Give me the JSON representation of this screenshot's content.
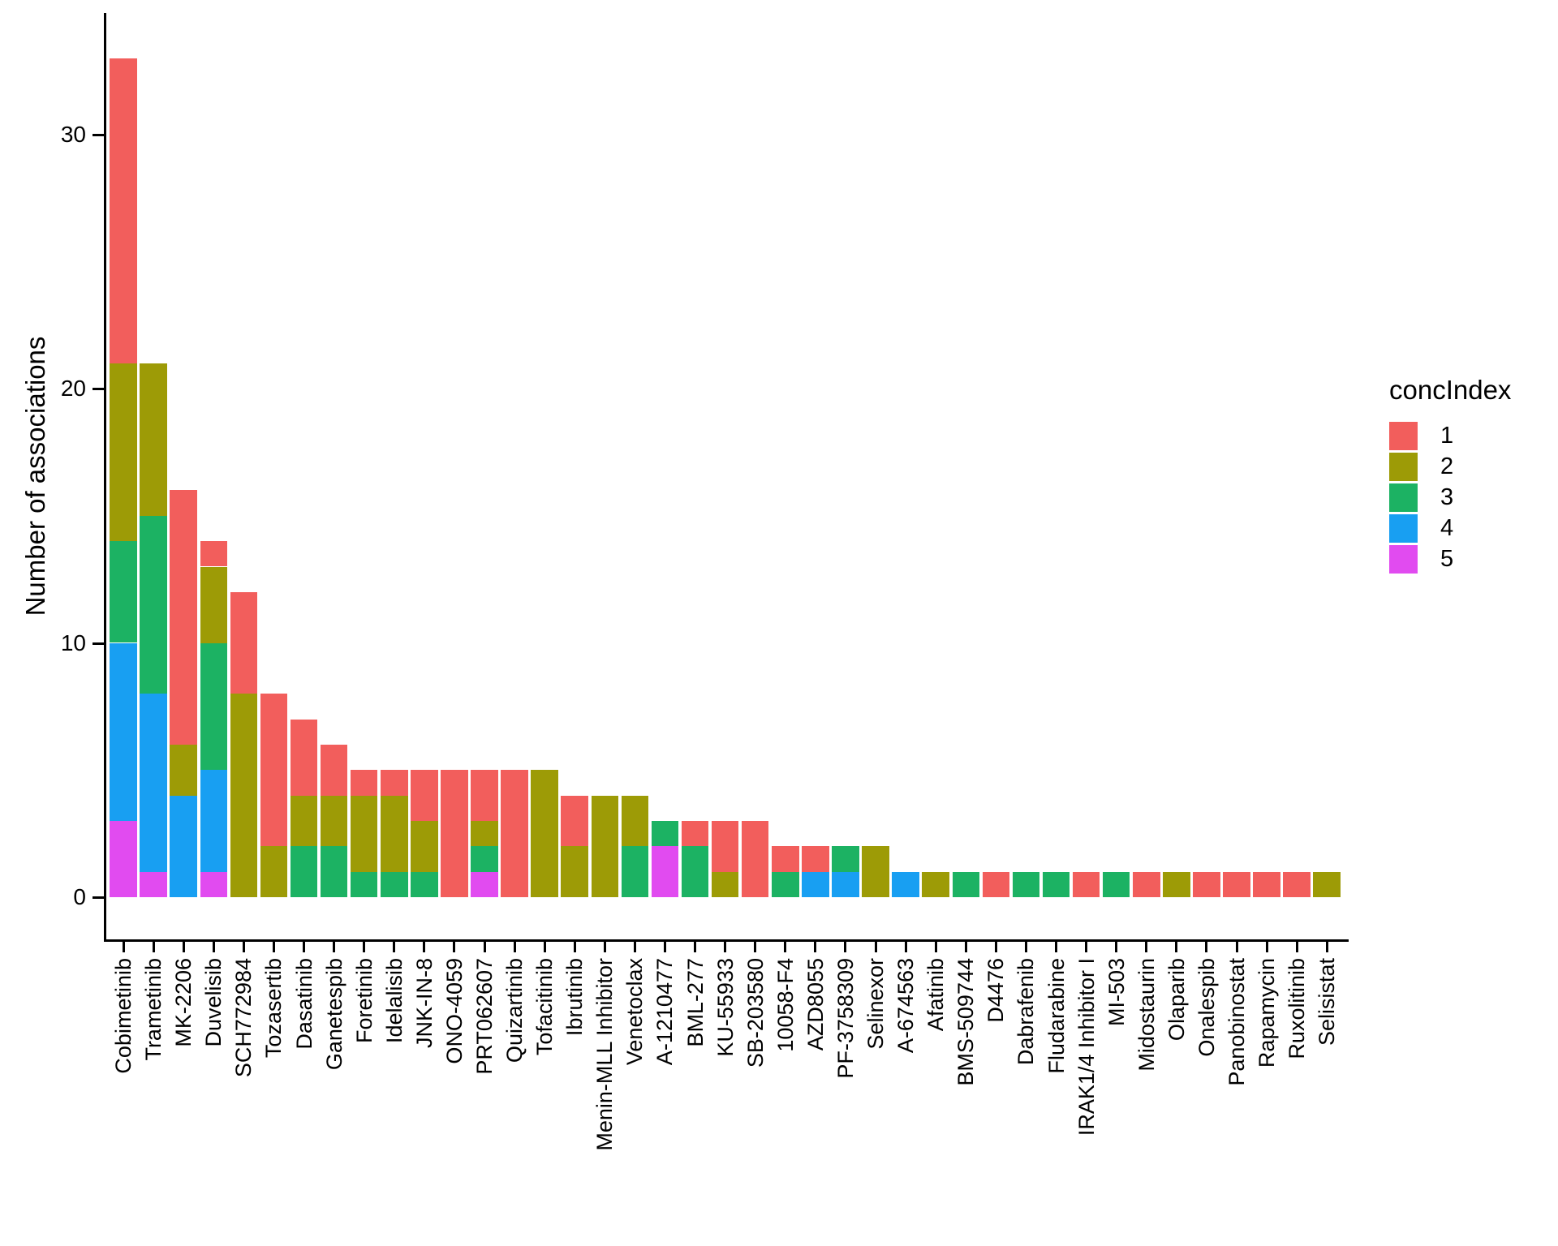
{
  "figure": {
    "background": "#FFFFFF",
    "axis_color": "#000000",
    "text_color": "#000000"
  },
  "chart_data": {
    "type": "bar",
    "stacked": true,
    "orientation": "vertical",
    "title": "",
    "xlabel": "",
    "ylabel": "Number of associations",
    "ylim": [
      0,
      35
    ],
    "yticks": [
      0,
      10,
      20,
      30
    ],
    "grid": false,
    "legend_title": "concIndex",
    "legend_position": "right",
    "stack_order_bottom_to_top": [
      "5",
      "4",
      "3",
      "2",
      "1"
    ],
    "categories": [
      "Cobimetinib",
      "Trametinib",
      "MK-2206",
      "Duvelisib",
      "SCH772984",
      "Tozasertib",
      "Dasatinib",
      "Ganetespib",
      "Foretinib",
      "Idelalisib",
      "JNK-IN-8",
      "ONO-4059",
      "PRT062607",
      "Quizartinib",
      "Tofacitinib",
      "Ibrutinib",
      "Menin-MLL Inhibitor",
      "Venetoclax",
      "A-1210477",
      "BML-277",
      "KU-55933",
      "SB-203580",
      "10058-F4",
      "AZD8055",
      "PF-3758309",
      "Selinexor",
      "A-674563",
      "Afatinib",
      "BMS-509744",
      "D4476",
      "Dabrafenib",
      "Fludarabine",
      "IRAK1/4 Inhibitor I",
      "MI-503",
      "Midostaurin",
      "Olaparib",
      "Onalespib",
      "Panobinostat",
      "Rapamycin",
      "Ruxolitinib",
      "Selisistat"
    ],
    "series": [
      {
        "name": "1",
        "color": "#F25E5C",
        "values": [
          12,
          0,
          10,
          1,
          4,
          6,
          3,
          2,
          1,
          1,
          2,
          5,
          2,
          5,
          0,
          2,
          0,
          0,
          0,
          1,
          2,
          3,
          1,
          1,
          0,
          0,
          0,
          0,
          0,
          1,
          0,
          0,
          1,
          0,
          1,
          0,
          1,
          1,
          1,
          1,
          0
        ]
      },
      {
        "name": "2",
        "color": "#9D9B06",
        "values": [
          7,
          6,
          2,
          3,
          8,
          2,
          2,
          2,
          3,
          3,
          2,
          0,
          1,
          0,
          5,
          2,
          4,
          2,
          0,
          0,
          1,
          0,
          0,
          0,
          0,
          2,
          0,
          1,
          0,
          0,
          0,
          0,
          0,
          0,
          0,
          1,
          0,
          0,
          0,
          0,
          1
        ]
      },
      {
        "name": "3",
        "color": "#1CB263",
        "values": [
          4,
          7,
          0,
          5,
          0,
          0,
          2,
          2,
          1,
          1,
          1,
          0,
          1,
          0,
          0,
          0,
          0,
          2,
          1,
          2,
          0,
          0,
          1,
          0,
          1,
          0,
          0,
          0,
          1,
          0,
          1,
          1,
          0,
          1,
          0,
          0,
          0,
          0,
          0,
          0,
          0
        ]
      },
      {
        "name": "4",
        "color": "#189FF2",
        "values": [
          7,
          7,
          4,
          4,
          0,
          0,
          0,
          0,
          0,
          0,
          0,
          0,
          0,
          0,
          0,
          0,
          0,
          0,
          0,
          0,
          0,
          0,
          0,
          1,
          1,
          0,
          1,
          0,
          0,
          0,
          0,
          0,
          0,
          0,
          0,
          0,
          0,
          0,
          0,
          0,
          0
        ]
      },
      {
        "name": "5",
        "color": "#E14BF0",
        "values": [
          3,
          1,
          0,
          1,
          0,
          0,
          0,
          0,
          0,
          0,
          0,
          0,
          1,
          0,
          0,
          0,
          0,
          0,
          2,
          0,
          0,
          0,
          0,
          0,
          0,
          0,
          0,
          0,
          0,
          0,
          0,
          0,
          0,
          0,
          0,
          0,
          0,
          0,
          0,
          0,
          0
        ]
      }
    ]
  }
}
